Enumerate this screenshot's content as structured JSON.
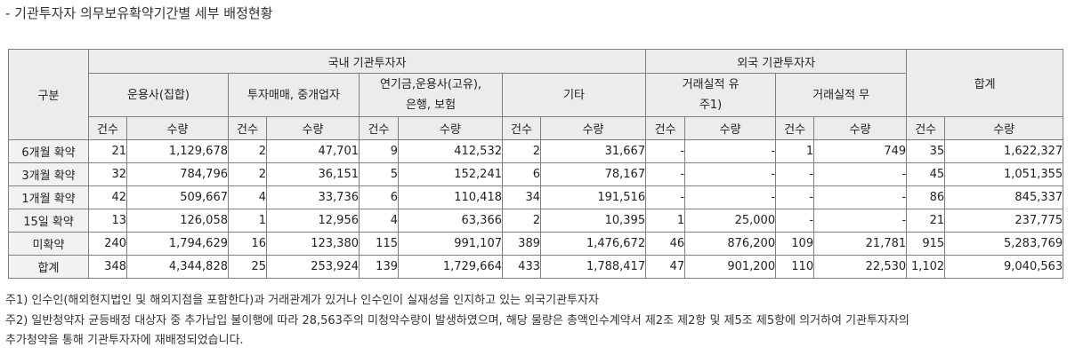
{
  "title": "- 기관투자자 의무보유확약기간별 세부 배정현황",
  "header": {
    "category": "구분",
    "domestic": "국내 기관투자자",
    "foreign": "외국 기관투자자",
    "total": "합계",
    "groups": [
      "운용사(집합)",
      "투자매매, 중개업자",
      "연기금,운용사(고유),\n은행, 보험",
      "기타",
      "거래실적 유\n주1)",
      "거래실적 무"
    ],
    "count": "건수",
    "qty": "수량"
  },
  "rows": [
    {
      "label": "6개월 확약",
      "cells": [
        "21",
        "1,129,678",
        "2",
        "47,701",
        "9",
        "412,532",
        "2",
        "31,667",
        "-",
        "-",
        "1",
        "749",
        "35",
        "1,622,327"
      ]
    },
    {
      "label": "3개월 확약",
      "cells": [
        "32",
        "784,796",
        "2",
        "36,151",
        "5",
        "152,241",
        "6",
        "78,167",
        "-",
        "-",
        "-",
        "-",
        "45",
        "1,051,355"
      ]
    },
    {
      "label": "1개월 확약",
      "cells": [
        "42",
        "509,667",
        "4",
        "33,736",
        "6",
        "110,418",
        "34",
        "191,516",
        "-",
        "-",
        "-",
        "-",
        "86",
        "845,337"
      ]
    },
    {
      "label": "15일 확약",
      "cells": [
        "13",
        "126,058",
        "1",
        "12,956",
        "4",
        "63,366",
        "2",
        "10,395",
        "1",
        "25,000",
        "-",
        "-",
        "21",
        "237,775"
      ]
    },
    {
      "label": "미확약",
      "cells": [
        "240",
        "1,794,629",
        "16",
        "123,380",
        "115",
        "991,107",
        "389",
        "1,476,672",
        "46",
        "876,200",
        "109",
        "21,781",
        "915",
        "5,283,769"
      ]
    },
    {
      "label": "합계",
      "cells": [
        "348",
        "4,344,828",
        "25",
        "253,924",
        "139",
        "1,729,664",
        "433",
        "1,788,417",
        "47",
        "901,200",
        "110",
        "22,530",
        "1,102",
        "9,040,563"
      ]
    }
  ],
  "notes": [
    "주1) 인수인(해외현지법인 및 해외지점을 포함한다)과 거래관계가 있거나 인수인이 실재성을 인지하고 있는 외국기관투자자",
    "주2) 일반청약자 균등배정 대상자 중 추가납입 불이행에 따라 28,563주의 미청약수량이 발생하였으며, 해당 물량은 총액인수계약서 제2조 제2항 및 제5조 제5항에 의거하여 기관투자자의",
    "추가청약을 통해 기관투자자에 재배정되었습니다."
  ]
}
